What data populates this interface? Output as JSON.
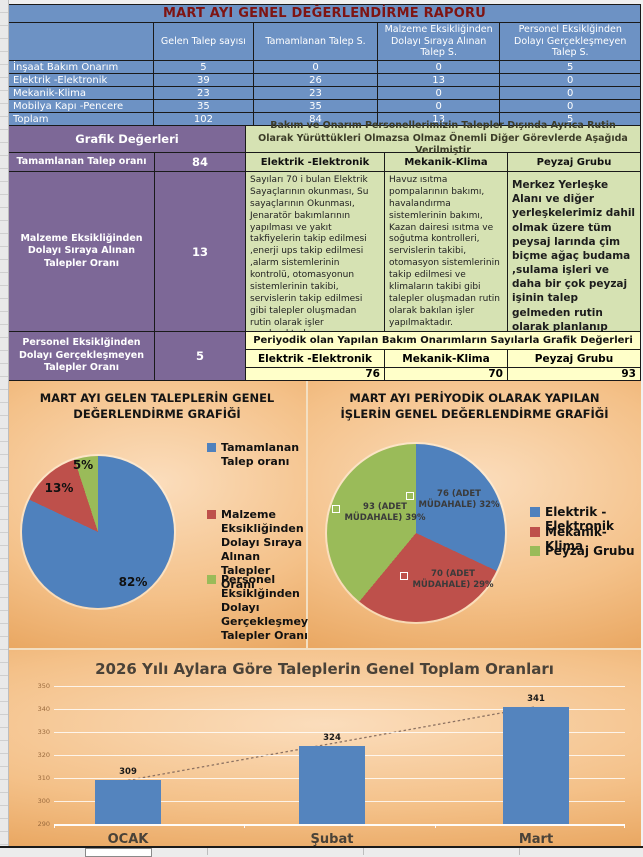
{
  "report": {
    "title": "MART AYI GENEL DEĞERLENDİRME RAPORU",
    "request_table": {
      "columns": [
        "Gelen Talep sayısı",
        "Tamamlanan Talep S.",
        "Malzeme Eksikliğinden Dolayı Sıraya Alınan Talep S.",
        "Personel Eksiklğinden Dolayı Gerçekleşmeyen Talep S."
      ],
      "rows": [
        {
          "label": "İnşaat Bakım Onarım",
          "values": [
            5,
            0,
            0,
            5
          ]
        },
        {
          "label": "Elektrik -Elektronik",
          "values": [
            39,
            26,
            13,
            0
          ]
        },
        {
          "label": "Mekanik-Klima",
          "values": [
            23,
            23,
            0,
            0
          ]
        },
        {
          "label": "Mobilya Kapı -Pencere",
          "values": [
            35,
            35,
            0,
            0
          ]
        },
        {
          "label": "Toplam",
          "values": [
            102,
            84,
            13,
            5
          ]
        }
      ]
    },
    "grafik_degerleri": {
      "title": "Grafik Değerleri",
      "rows": [
        {
          "label": "Tamamlanan Talep oranı",
          "value": 84
        },
        {
          "label": "Malzeme Eksikliğinden Dolayı Sıraya Alınan Talepler Oranı",
          "value": 13
        },
        {
          "label": "Personel Eksiklğinden Dolayı Gerçekleşmeyen Talepler Oranı",
          "value": 5
        }
      ]
    },
    "routine_section": {
      "header": "Bakım ve Onarım Personellerimizin Talepler Dışında Ayrıca Rutin Olarak Yürüttükleri Olmazsa Olmaz Önemli Diğer Görevlerde Aşağıda Verilmiştir",
      "columns": [
        "Elektrik -Elektronik",
        "Mekanik-Klima",
        "Peyzaj Grubu"
      ],
      "descriptions": [
        "Sayıları 70 i bulan Elektrik Sayaçlarının okunması, Su sayaçlarının Okunması, Jenaratör bakımlarının yapılması ve yakıt takfiyelerin takip edilmesi ,enerji ups takip edilmesi ,alarm sistemlerinin kontrolü, otomasyonun sistemlerinin takibi, servislerin takip edilmesi gibi talepler oluşmadan rutin olarak işler yapılmaktadır.",
        "Havuz ısıtma pompalarının bakımı, havalandırma sistemlerinin bakımı,  Kazan dairesi ısıtma ve soğutma kontrolleri,  servislerin takibi,  otomasyon sistemlerinin takip edilmesi ve klimaların takibi gibi talepler oluşmadan rutin olarak bakılan işler yapılmaktadır.",
        "Merkez Yerleşke Alanı ve diğer yerleşkelerimiz dahil olmak üzere tüm peysaj larında çim biçme ağaç budama ,sulama işleri ve daha bir çok peyzaj işinin talep gelmeden rutin olarak planlanıp yapılmaktadır."
      ]
    },
    "periodic_section": {
      "header": "Periyodik olan Yapılan Bakım Onarımların Sayılarla Grafik Değerleri",
      "columns": [
        "Elektrik -Elektronik",
        "Mekanik-Klima",
        "Peyzaj Grubu"
      ],
      "values": [
        76,
        70,
        93
      ]
    }
  },
  "colors": {
    "table_blue": "#6D92C4",
    "title_red": "#7E1412",
    "purple": "#7D6897",
    "light_green": "#D6E2B3",
    "light_yellow": "#FFFFC9",
    "pie_blue": "#4F81BD",
    "pie_red": "#BE504B",
    "pie_green": "#9ABB59"
  },
  "chart_data": [
    {
      "type": "pie",
      "title": "MART AYI GELEN TALEPLERİN GENEL DEĞERLENDİRME GRAFİĞİ",
      "legend_position": "right",
      "slices": [
        {
          "label": "Tamamlanan Talep oranı",
          "value": 82,
          "data_label": "82%",
          "color": "#4F81BD"
        },
        {
          "label": "Malzeme Eksikliğinden Dolayı Sıraya Alınan Talepler Oranı",
          "value": 13,
          "data_label": "13%",
          "color": "#BE504B"
        },
        {
          "label": "Personel Eksiklğinden Dolayı Gerçekleşmeyen Talepler Oranı",
          "value": 5,
          "data_label": "5%",
          "color": "#9ABB59"
        }
      ]
    },
    {
      "type": "pie",
      "title": "MART AYI PERİYODİK OLARAK YAPILAN İŞLERİN GENEL DEĞERLENDİRME GRAFİĞİ",
      "legend_position": "right",
      "slices": [
        {
          "label": "Elektrik -Elektronik",
          "value": 32,
          "count": 76,
          "data_label": "76 (ADET MÜDAHALE) 32%",
          "color": "#4F81BD"
        },
        {
          "label": "Mekanik-Klima",
          "value": 29,
          "count": 70,
          "data_label": "70 (ADET MÜDAHALE) 29%",
          "color": "#BE504B"
        },
        {
          "label": "Peyzaj Grubu",
          "value": 39,
          "count": 93,
          "data_label": "93 (ADET MÜDAHALE) 39%",
          "color": "#9ABB59"
        }
      ]
    },
    {
      "type": "bar",
      "title": "2026 Yılı Aylara Göre Taleplerin Genel Toplam Oranları",
      "categories": [
        "OCAK",
        "Şubat",
        "Mart"
      ],
      "values": [
        309,
        324,
        341
      ],
      "ylim": [
        290,
        350
      ],
      "yticks": [
        290,
        300,
        310,
        320,
        330,
        340,
        350
      ],
      "bar_color": "#5484BE",
      "grid": true,
      "trendline": true,
      "legend_position": "none"
    }
  ]
}
